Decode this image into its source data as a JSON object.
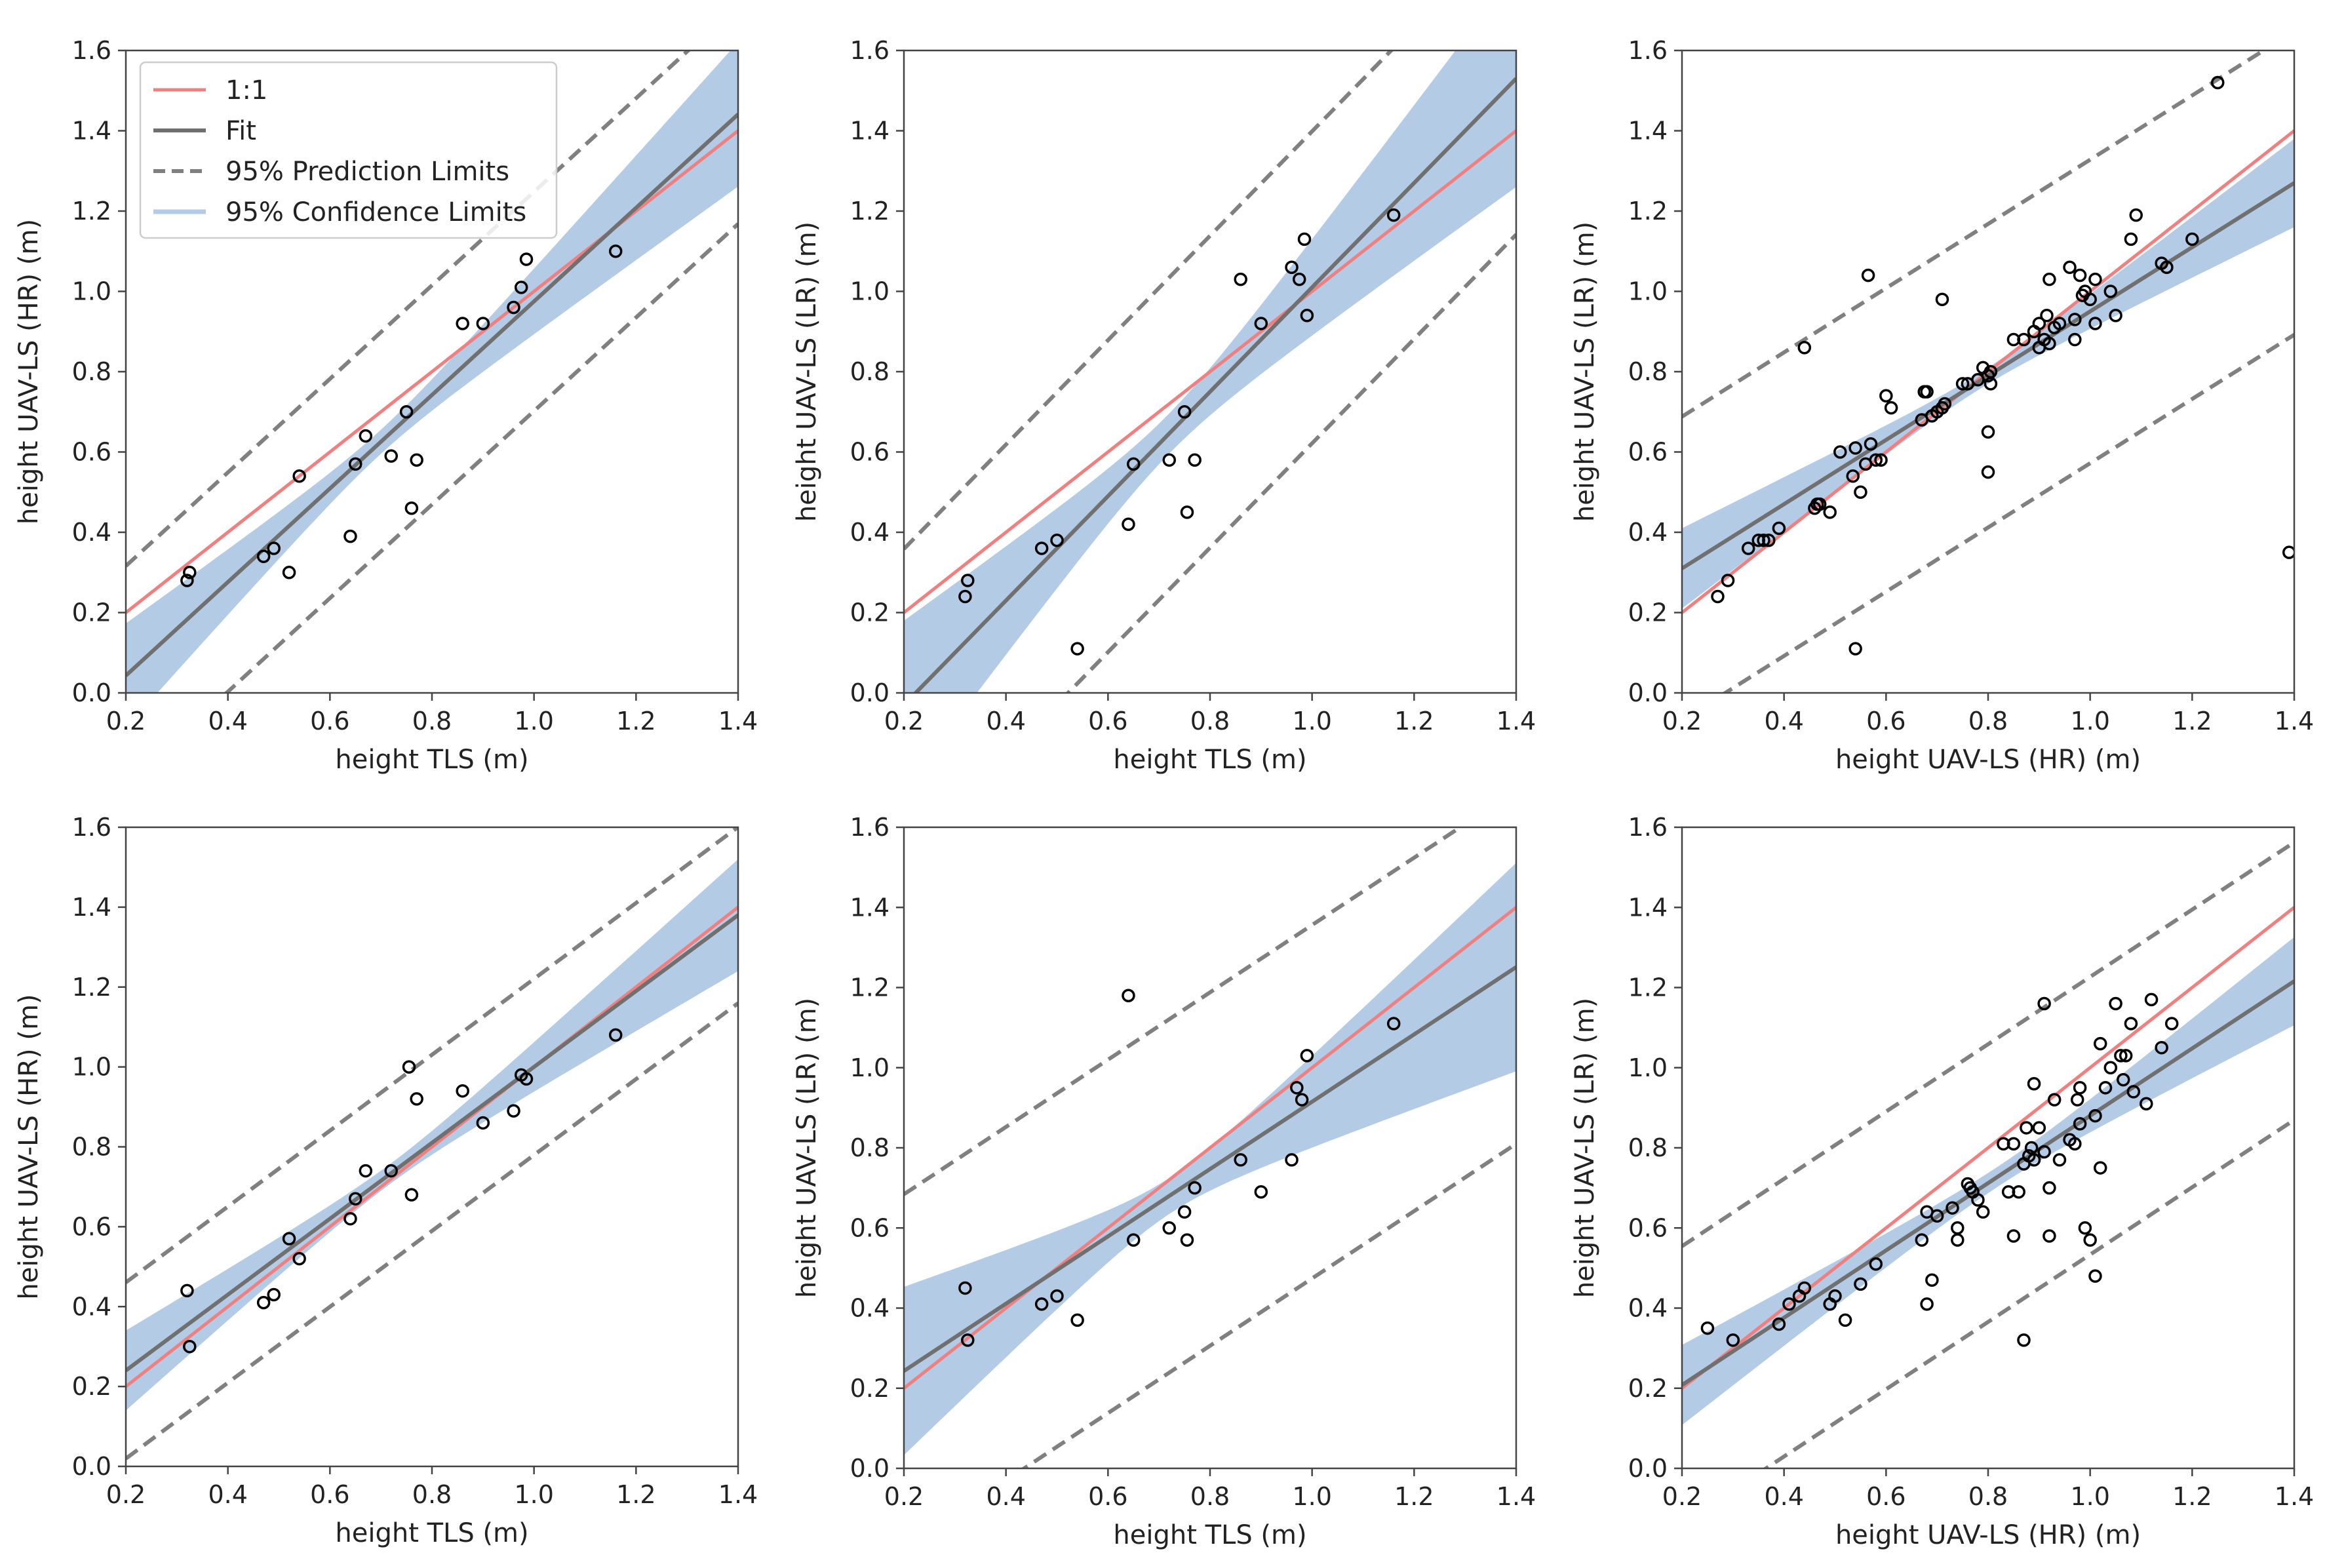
{
  "colors": {
    "one_to_one": "#f08080",
    "fit": "#707070",
    "prediction": "#808080",
    "confidence": "#b4cbe6",
    "axes": "#444444",
    "marker": "#000000"
  },
  "legend": {
    "one_to_one": "1:1",
    "fit": "Fit",
    "prediction": "95% Prediction Limits",
    "confidence": "95% Confidence Limits"
  },
  "chart_data": [
    {
      "type": "scatter",
      "title": "",
      "xlabel": "height TLS (m)",
      "ylabel": "height UAV-LS (HR) (m)",
      "xlim": [
        0.2,
        1.4
      ],
      "ylim": [
        0.0,
        1.6
      ],
      "xticks": [
        "0.2",
        "0.4",
        "0.6",
        "0.8",
        "1.0",
        "1.2",
        "1.4"
      ],
      "yticks": [
        "0.0",
        "0.2",
        "0.4",
        "0.6",
        "0.8",
        "1.0",
        "1.2",
        "1.4",
        "1.6"
      ],
      "legend": true,
      "fit": {
        "slope": 1.165,
        "intercept": -0.19
      },
      "ci_halfwidth": {
        "at_xmin": 0.13,
        "at_mean": 0.03,
        "at_xmax": 0.18,
        "x_mean": 0.7
      },
      "pi_halfwidth": 0.26,
      "points": [
        [
          0.32,
          0.28
        ],
        [
          0.325,
          0.3
        ],
        [
          0.47,
          0.34
        ],
        [
          0.49,
          0.36
        ],
        [
          0.52,
          0.3
        ],
        [
          0.54,
          0.54
        ],
        [
          0.64,
          0.39
        ],
        [
          0.65,
          0.57
        ],
        [
          0.67,
          0.64
        ],
        [
          0.72,
          0.59
        ],
        [
          0.75,
          0.7
        ],
        [
          0.76,
          0.46
        ],
        [
          0.77,
          0.58
        ],
        [
          0.86,
          0.92
        ],
        [
          0.9,
          0.92
        ],
        [
          0.96,
          0.96
        ],
        [
          0.975,
          1.01
        ],
        [
          0.985,
          1.08
        ],
        [
          1.16,
          1.1
        ]
      ]
    },
    {
      "type": "scatter",
      "title": "",
      "xlabel": "height TLS (m)",
      "ylabel": "height UAV-LS (LR) (m)",
      "xlim": [
        0.2,
        1.4
      ],
      "ylim": [
        0.0,
        1.6
      ],
      "xticks": [
        "0.2",
        "0.4",
        "0.6",
        "0.8",
        "1.0",
        "1.2",
        "1.4"
      ],
      "yticks": [
        "0.0",
        "0.2",
        "0.4",
        "0.6",
        "0.8",
        "1.0",
        "1.2",
        "1.4",
        "1.6"
      ],
      "legend": false,
      "fit": {
        "slope": 1.3,
        "intercept": -0.29
      },
      "ci_halfwidth": {
        "at_xmin": 0.21,
        "at_mean": 0.05,
        "at_xmax": 0.27,
        "x_mean": 0.72
      },
      "pi_halfwidth": 0.37,
      "points": [
        [
          0.32,
          0.24
        ],
        [
          0.325,
          0.28
        ],
        [
          0.47,
          0.36
        ],
        [
          0.5,
          0.38
        ],
        [
          0.54,
          0.11
        ],
        [
          0.64,
          0.42
        ],
        [
          0.65,
          0.57
        ],
        [
          0.72,
          0.58
        ],
        [
          0.75,
          0.7
        ],
        [
          0.755,
          0.45
        ],
        [
          0.77,
          0.58
        ],
        [
          0.86,
          1.03
        ],
        [
          0.9,
          0.92
        ],
        [
          0.96,
          1.06
        ],
        [
          0.975,
          1.03
        ],
        [
          0.985,
          1.13
        ],
        [
          0.99,
          0.94
        ],
        [
          1.16,
          1.19
        ]
      ]
    },
    {
      "type": "scatter",
      "title": "",
      "xlabel": "height UAV-LS (HR) (m)",
      "ylabel": "height UAV-LS (LR) (m)",
      "xlim": [
        0.2,
        1.4
      ],
      "ylim": [
        0.0,
        1.6
      ],
      "xticks": [
        "0.2",
        "0.4",
        "0.6",
        "0.8",
        "1.0",
        "1.2",
        "1.4"
      ],
      "yticks": [
        "0.0",
        "0.2",
        "0.4",
        "0.6",
        "0.8",
        "1.0",
        "1.2",
        "1.4",
        "1.6"
      ],
      "legend": false,
      "fit": {
        "slope": 0.8,
        "intercept": 0.15
      },
      "ci_halfwidth": {
        "at_xmin": 0.1,
        "at_mean": 0.02,
        "at_xmax": 0.11,
        "x_mean": 0.78
      },
      "pi_halfwidth": 0.36,
      "points": [
        [
          0.27,
          0.24
        ],
        [
          0.29,
          0.28
        ],
        [
          0.33,
          0.36
        ],
        [
          0.35,
          0.38
        ],
        [
          0.36,
          0.38
        ],
        [
          0.37,
          0.38
        ],
        [
          0.39,
          0.41
        ],
        [
          0.44,
          0.86
        ],
        [
          0.46,
          0.46
        ],
        [
          0.465,
          0.47
        ],
        [
          0.47,
          0.47
        ],
        [
          0.49,
          0.45
        ],
        [
          0.51,
          0.6
        ],
        [
          0.535,
          0.54
        ],
        [
          0.54,
          0.61
        ],
        [
          0.54,
          0.11
        ],
        [
          0.55,
          0.5
        ],
        [
          0.56,
          0.57
        ],
        [
          0.565,
          1.04
        ],
        [
          0.57,
          0.62
        ],
        [
          0.58,
          0.58
        ],
        [
          0.59,
          0.58
        ],
        [
          0.6,
          0.74
        ],
        [
          0.61,
          0.71
        ],
        [
          0.67,
          0.68
        ],
        [
          0.675,
          0.75
        ],
        [
          0.68,
          0.75
        ],
        [
          0.69,
          0.69
        ],
        [
          0.7,
          0.7
        ],
        [
          0.71,
          0.71
        ],
        [
          0.71,
          0.98
        ],
        [
          0.715,
          0.72
        ],
        [
          0.75,
          0.77
        ],
        [
          0.76,
          0.77
        ],
        [
          0.78,
          0.78
        ],
        [
          0.79,
          0.81
        ],
        [
          0.8,
          0.79
        ],
        [
          0.8,
          0.65
        ],
        [
          0.8,
          0.55
        ],
        [
          0.805,
          0.77
        ],
        [
          0.805,
          0.8
        ],
        [
          0.85,
          0.88
        ],
        [
          0.87,
          0.88
        ],
        [
          0.89,
          0.9
        ],
        [
          0.9,
          0.86
        ],
        [
          0.9,
          0.92
        ],
        [
          0.91,
          0.88
        ],
        [
          0.915,
          0.94
        ],
        [
          0.92,
          0.87
        ],
        [
          0.92,
          1.03
        ],
        [
          0.93,
          0.91
        ],
        [
          0.94,
          0.92
        ],
        [
          0.96,
          1.06
        ],
        [
          0.97,
          0.88
        ],
        [
          0.97,
          0.93
        ],
        [
          0.98,
          1.04
        ],
        [
          0.985,
          0.99
        ],
        [
          0.99,
          1.0
        ],
        [
          1.0,
          0.98
        ],
        [
          1.01,
          1.03
        ],
        [
          1.01,
          0.92
        ],
        [
          1.04,
          1.0
        ],
        [
          1.05,
          0.94
        ],
        [
          1.08,
          1.13
        ],
        [
          1.09,
          1.19
        ],
        [
          1.14,
          1.07
        ],
        [
          1.15,
          1.06
        ],
        [
          1.2,
          1.13
        ],
        [
          1.25,
          1.52
        ],
        [
          1.39,
          0.35
        ]
      ]
    },
    {
      "type": "scatter",
      "title": "",
      "xlabel": "height TLS (m)",
      "ylabel": "height UAV-LS (HR) (m)",
      "xlim": [
        0.2,
        1.4
      ],
      "ylim": [
        0.0,
        1.6
      ],
      "xticks": [
        "0.2",
        "0.4",
        "0.6",
        "0.8",
        "1.0",
        "1.2",
        "1.4"
      ],
      "yticks": [
        "0.0",
        "0.2",
        "0.4",
        "0.6",
        "0.8",
        "1.0",
        "1.2",
        "1.4",
        "1.6"
      ],
      "legend": false,
      "fit": {
        "slope": 0.95,
        "intercept": 0.05
      },
      "ci_halfwidth": {
        "at_xmin": 0.1,
        "at_mean": 0.025,
        "at_xmax": 0.14,
        "x_mean": 0.72
      },
      "pi_halfwidth": 0.21,
      "points": [
        [
          0.32,
          0.44
        ],
        [
          0.325,
          0.3
        ],
        [
          0.47,
          0.41
        ],
        [
          0.49,
          0.43
        ],
        [
          0.52,
          0.57
        ],
        [
          0.54,
          0.52
        ],
        [
          0.64,
          0.62
        ],
        [
          0.65,
          0.67
        ],
        [
          0.67,
          0.74
        ],
        [
          0.72,
          0.74
        ],
        [
          0.755,
          1.0
        ],
        [
          0.76,
          0.68
        ],
        [
          0.77,
          0.92
        ],
        [
          0.86,
          0.94
        ],
        [
          0.9,
          0.86
        ],
        [
          0.96,
          0.89
        ],
        [
          0.975,
          0.98
        ],
        [
          0.985,
          0.97
        ],
        [
          1.16,
          1.08
        ]
      ]
    },
    {
      "type": "scatter",
      "title": "",
      "xlabel": "height TLS (m)",
      "ylabel": "height UAV-LS (LR) (m)",
      "xlim": [
        0.2,
        1.4
      ],
      "ylim": [
        0.0,
        1.6
      ],
      "xticks": [
        "0.2",
        "0.4",
        "0.6",
        "0.8",
        "1.0",
        "1.2",
        "1.4"
      ],
      "yticks": [
        "0.0",
        "0.2",
        "0.4",
        "0.6",
        "0.8",
        "1.0",
        "1.2",
        "1.4",
        "1.6"
      ],
      "legend": false,
      "fit": {
        "slope": 0.84,
        "intercept": 0.075
      },
      "ci_halfwidth": {
        "at_xmin": 0.21,
        "at_mean": 0.045,
        "at_xmax": 0.26,
        "x_mean": 0.72
      },
      "pi_halfwidth": 0.42,
      "points": [
        [
          0.32,
          0.45
        ],
        [
          0.325,
          0.32
        ],
        [
          0.47,
          0.41
        ],
        [
          0.5,
          0.43
        ],
        [
          0.54,
          0.37
        ],
        [
          0.64,
          1.18
        ],
        [
          0.65,
          0.57
        ],
        [
          0.72,
          0.6
        ],
        [
          0.75,
          0.64
        ],
        [
          0.755,
          0.57
        ],
        [
          0.77,
          0.7
        ],
        [
          0.86,
          0.77
        ],
        [
          0.9,
          0.69
        ],
        [
          0.96,
          0.77
        ],
        [
          0.97,
          0.95
        ],
        [
          0.98,
          0.92
        ],
        [
          0.99,
          1.03
        ],
        [
          1.16,
          1.11
        ]
      ]
    },
    {
      "type": "scatter",
      "title": "",
      "xlabel": "height UAV-LS (HR) (m)",
      "ylabel": "height UAV-LS (LR) (m)",
      "xlim": [
        0.2,
        1.4
      ],
      "ylim": [
        0.0,
        1.6
      ],
      "xticks": [
        "0.2",
        "0.4",
        "0.6",
        "0.8",
        "1.0",
        "1.2",
        "1.4"
      ],
      "yticks": [
        "0.0",
        "0.2",
        "0.4",
        "0.6",
        "0.8",
        "1.0",
        "1.2",
        "1.4",
        "1.6"
      ],
      "legend": false,
      "fit": {
        "slope": 0.84,
        "intercept": 0.04
      },
      "ci_halfwidth": {
        "at_xmin": 0.1,
        "at_mean": 0.025,
        "at_xmax": 0.11,
        "x_mean": 0.82
      },
      "pi_halfwidth": 0.33,
      "points": [
        [
          0.25,
          0.35
        ],
        [
          0.3,
          0.32
        ],
        [
          0.39,
          0.36
        ],
        [
          0.41,
          0.41
        ],
        [
          0.43,
          0.43
        ],
        [
          0.44,
          0.45
        ],
        [
          0.49,
          0.41
        ],
        [
          0.5,
          0.43
        ],
        [
          0.52,
          0.37
        ],
        [
          0.55,
          0.46
        ],
        [
          0.58,
          0.51
        ],
        [
          0.67,
          0.57
        ],
        [
          0.68,
          0.64
        ],
        [
          0.68,
          0.41
        ],
        [
          0.69,
          0.47
        ],
        [
          0.7,
          0.63
        ],
        [
          0.73,
          0.65
        ],
        [
          0.74,
          0.6
        ],
        [
          0.74,
          0.57
        ],
        [
          0.76,
          0.71
        ],
        [
          0.765,
          0.7
        ],
        [
          0.77,
          0.69
        ],
        [
          0.78,
          0.67
        ],
        [
          0.79,
          0.64
        ],
        [
          0.83,
          0.81
        ],
        [
          0.84,
          0.69
        ],
        [
          0.85,
          0.81
        ],
        [
          0.85,
          0.58
        ],
        [
          0.86,
          0.69
        ],
        [
          0.87,
          0.76
        ],
        [
          0.875,
          0.85
        ],
        [
          0.87,
          0.32
        ],
        [
          0.88,
          0.78
        ],
        [
          0.885,
          0.8
        ],
        [
          0.89,
          0.96
        ],
        [
          0.89,
          0.77
        ],
        [
          0.9,
          0.85
        ],
        [
          0.91,
          0.79
        ],
        [
          0.91,
          1.16
        ],
        [
          0.92,
          0.7
        ],
        [
          0.92,
          0.58
        ],
        [
          0.93,
          0.92
        ],
        [
          0.94,
          0.77
        ],
        [
          0.96,
          0.82
        ],
        [
          0.97,
          0.81
        ],
        [
          0.975,
          0.92
        ],
        [
          0.98,
          0.86
        ],
        [
          0.98,
          0.95
        ],
        [
          0.99,
          0.6
        ],
        [
          1.0,
          0.57
        ],
        [
          1.01,
          0.88
        ],
        [
          1.01,
          0.48
        ],
        [
          1.02,
          0.75
        ],
        [
          1.02,
          1.06
        ],
        [
          1.03,
          0.95
        ],
        [
          1.04,
          1.0
        ],
        [
          1.05,
          1.16
        ],
        [
          1.06,
          1.03
        ],
        [
          1.065,
          0.97
        ],
        [
          1.07,
          1.03
        ],
        [
          1.08,
          1.11
        ],
        [
          1.085,
          0.94
        ],
        [
          1.11,
          0.91
        ],
        [
          1.12,
          1.17
        ],
        [
          1.14,
          1.05
        ],
        [
          1.16,
          1.11
        ]
      ]
    }
  ]
}
